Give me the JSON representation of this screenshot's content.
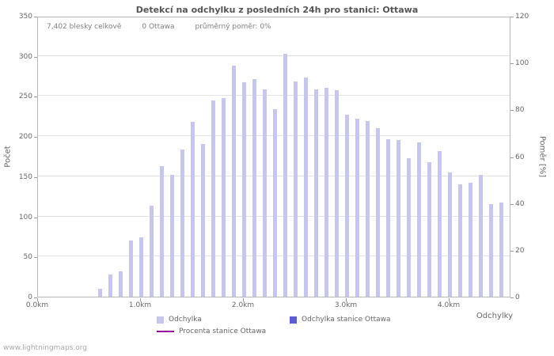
{
  "page": {
    "watermark": "www.lightningmaps.org"
  },
  "stats": {
    "total_label": "7,402 blesky celkově",
    "station_label": "0 Ottawa",
    "avg_ratio_label": "průměrný poměr: 0%"
  },
  "chart_data": {
    "type": "bar",
    "title": "Detekcí na odchylku z posledních 24h pro stanici: Ottawa",
    "xlabel": "Odchylky",
    "ylabel": "Počet",
    "y2label": "Poměr [%]",
    "x_unit": "km",
    "x_range": [
      0,
      4.6
    ],
    "y_left": {
      "min": 0,
      "max": 350,
      "step": 50
    },
    "y_right": {
      "min": 0,
      "max": 120,
      "step": 20
    },
    "grid": true,
    "legend_position": "bottom",
    "x_ticks": [
      {
        "label": "0.0km",
        "value": 0
      },
      {
        "label": "1.0km",
        "value": 1
      },
      {
        "label": "2.0km",
        "value": 2
      },
      {
        "label": "3.0km",
        "value": 3
      },
      {
        "label": "4.0km",
        "value": 4
      }
    ],
    "x": [
      0.6,
      0.7,
      0.8,
      0.9,
      1.0,
      1.1,
      1.2,
      1.3,
      1.4,
      1.5,
      1.6,
      1.7,
      1.8,
      1.9,
      2.0,
      2.1,
      2.2,
      2.3,
      2.4,
      2.5,
      2.6,
      2.7,
      2.8,
      2.9,
      3.0,
      3.1,
      3.2,
      3.3,
      3.4,
      3.5,
      3.6,
      3.7,
      3.8,
      3.9,
      4.0,
      4.1,
      4.2,
      4.3,
      4.4,
      4.5
    ],
    "series": [
      {
        "name": "Odchylka",
        "type": "bar",
        "axis": "left",
        "color": "#c6c6ef",
        "values": [
          10,
          28,
          32,
          70,
          74,
          113,
          163,
          152,
          183,
          218,
          190,
          245,
          247,
          288,
          267,
          271,
          258,
          234,
          303,
          268,
          273,
          258,
          260,
          257,
          227,
          222,
          219,
          210,
          196,
          195,
          173,
          192,
          168,
          181,
          155,
          140,
          142,
          152,
          115,
          117
        ]
      },
      {
        "name": "Odchylka stanice Ottawa",
        "type": "bar",
        "axis": "left",
        "color": "#5c5cd6",
        "values": []
      },
      {
        "name": "Procenta stanice Ottawa",
        "type": "line",
        "axis": "right",
        "color": "#990099",
        "values": []
      }
    ]
  }
}
